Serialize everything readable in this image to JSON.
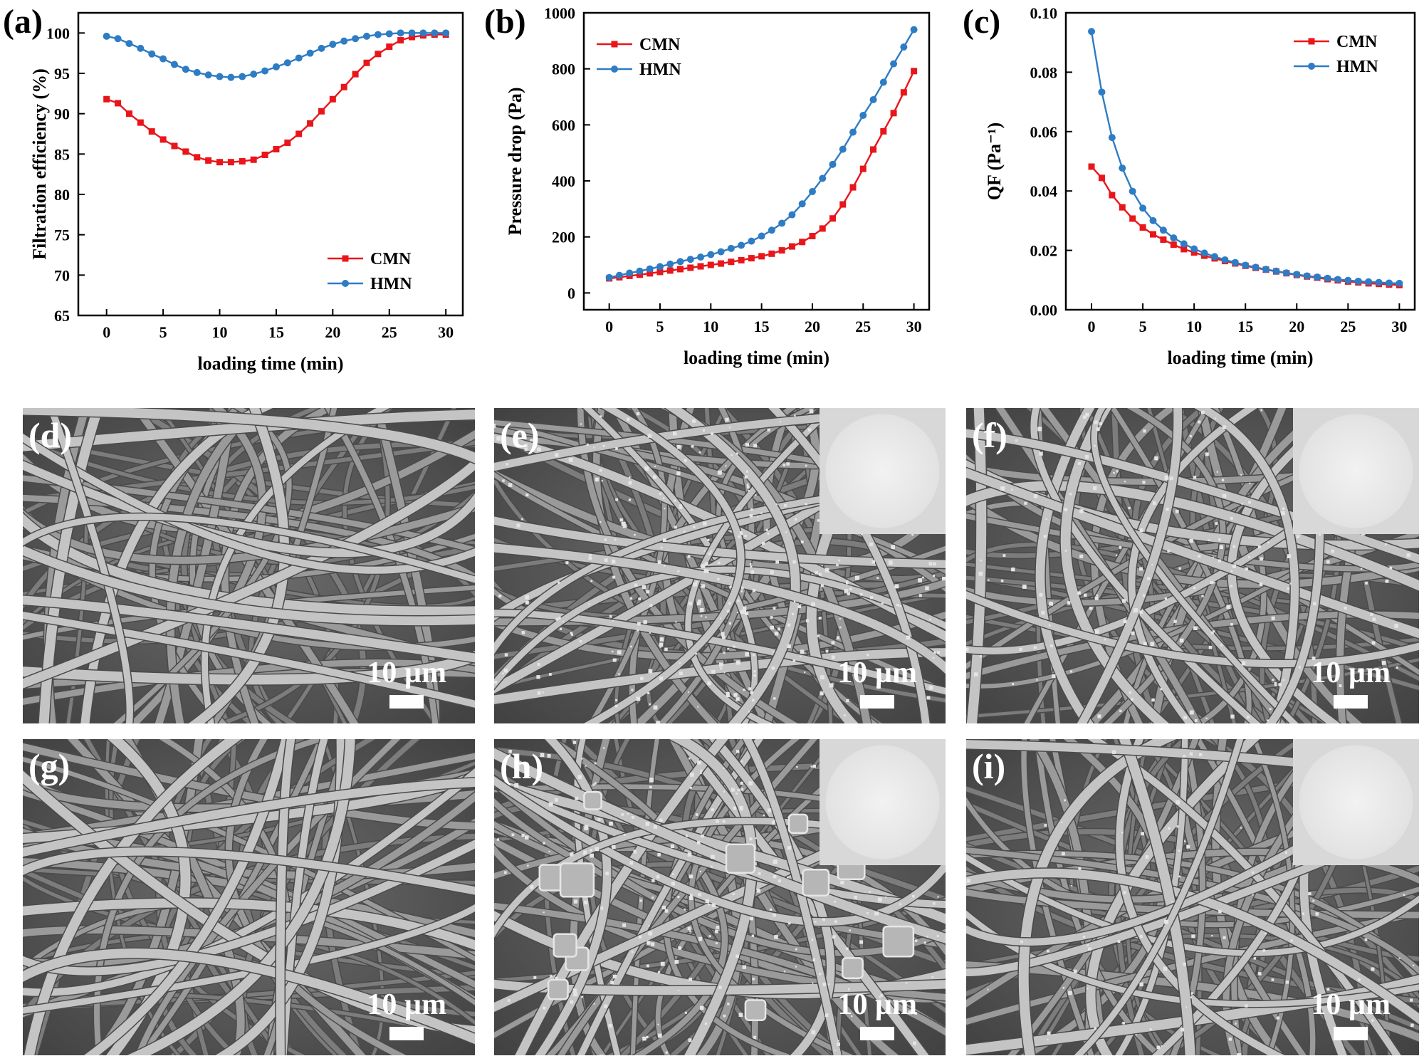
{
  "chart_data": [
    {
      "type": "line",
      "panel": "(a)",
      "xlabel": "loading time (min)",
      "ylabel": "Filtration efficiency (%)",
      "xlim": [
        -2.5,
        31.5
      ],
      "ylim": [
        65,
        102.5
      ],
      "xticks": [
        0,
        5,
        10,
        15,
        20,
        25,
        30
      ],
      "yticks": [
        65,
        70,
        75,
        80,
        85,
        90,
        95,
        100
      ],
      "legend_position": "bottom-right",
      "x": [
        0,
        1,
        2,
        3,
        4,
        5,
        6,
        7,
        8,
        9,
        10,
        11,
        12,
        13,
        14,
        15,
        16,
        17,
        18,
        19,
        20,
        21,
        22,
        23,
        24,
        25,
        26,
        27,
        28,
        29,
        30
      ],
      "series": [
        {
          "name": "CMN",
          "color": "#e8161b",
          "marker": "square",
          "values": [
            91.8,
            91.3,
            90.0,
            88.9,
            87.8,
            86.8,
            86.0,
            85.3,
            84.6,
            84.2,
            84.0,
            84.0,
            84.1,
            84.3,
            84.9,
            85.6,
            86.4,
            87.5,
            88.8,
            90.3,
            91.8,
            93.3,
            94.9,
            96.3,
            97.4,
            98.3,
            99.1,
            99.5,
            99.7,
            99.8,
            99.8
          ]
        },
        {
          "name": "HMN",
          "color": "#2e7cc4",
          "marker": "circle",
          "values": [
            99.6,
            99.3,
            98.7,
            98.1,
            97.4,
            96.8,
            96.1,
            95.5,
            95.1,
            94.8,
            94.6,
            94.5,
            94.6,
            94.9,
            95.3,
            95.8,
            96.3,
            96.9,
            97.5,
            98.1,
            98.6,
            99.0,
            99.3,
            99.6,
            99.8,
            99.9,
            100.0,
            100.0,
            100.0,
            100.0,
            100.0
          ]
        }
      ]
    },
    {
      "type": "line",
      "panel": "(b)",
      "xlabel": "loading time (min)",
      "ylabel": "Pressure drop (Pa)",
      "xlim": [
        -2.5,
        31.5
      ],
      "ylim": [
        -60,
        1000
      ],
      "xticks": [
        0,
        5,
        10,
        15,
        20,
        25,
        30
      ],
      "yticks": [
        0,
        200,
        400,
        600,
        800,
        1000
      ],
      "legend_position": "top-left",
      "x": [
        0,
        1,
        2,
        3,
        4,
        5,
        6,
        7,
        8,
        9,
        10,
        11,
        12,
        13,
        14,
        15,
        16,
        17,
        18,
        19,
        20,
        21,
        22,
        23,
        24,
        25,
        26,
        27,
        28,
        29,
        30
      ],
      "series": [
        {
          "name": "CMN",
          "color": "#e8161b",
          "marker": "square",
          "values": [
            52,
            56,
            61,
            65,
            70,
            75,
            80,
            85,
            90,
            95,
            100,
            105,
            111,
            117,
            124,
            131,
            140,
            152,
            166,
            182,
            203,
            230,
            266,
            316,
            377,
            443,
            512,
            577,
            642,
            716,
            792
          ]
        },
        {
          "name": "HMN",
          "color": "#2e7cc4",
          "marker": "circle",
          "values": [
            55,
            63,
            71,
            78,
            86,
            94,
            103,
            112,
            120,
            128,
            137,
            147,
            159,
            170,
            185,
            203,
            224,
            249,
            279,
            318,
            362,
            409,
            459,
            513,
            574,
            634,
            690,
            752,
            818,
            878,
            940
          ]
        }
      ]
    },
    {
      "type": "line",
      "panel": "(c)",
      "xlabel": "loading time (min)",
      "ylabel": "QF (Pa⁻¹)",
      "xlim": [
        -2.5,
        31.5
      ],
      "ylim": [
        0,
        0.1
      ],
      "xticks": [
        0,
        5,
        10,
        15,
        20,
        25,
        30
      ],
      "yticks": [
        "0.00",
        "0.02",
        "0.04",
        "0.06",
        "0.08",
        "0.10"
      ],
      "legend_position": "top-right",
      "x": [
        0,
        1,
        2,
        3,
        4,
        5,
        6,
        7,
        8,
        9,
        10,
        11,
        12,
        13,
        14,
        15,
        16,
        17,
        18,
        19,
        20,
        21,
        22,
        23,
        24,
        25,
        26,
        27,
        28,
        29,
        30
      ],
      "series": [
        {
          "name": "CMN",
          "color": "#e8161b",
          "marker": "square",
          "values": [
            0.0482,
            0.0444,
            0.0386,
            0.0345,
            0.0307,
            0.0277,
            0.0254,
            0.0236,
            0.0219,
            0.0204,
            0.0193,
            0.0182,
            0.0173,
            0.0164,
            0.0156,
            0.0148,
            0.0141,
            0.0135,
            0.0129,
            0.0123,
            0.0117,
            0.0112,
            0.0108,
            0.0103,
            0.0099,
            0.0095,
            0.0092,
            0.0089,
            0.0087,
            0.0085,
            0.0083
          ]
        },
        {
          "name": "HMN",
          "color": "#2e7cc4",
          "marker": "circle",
          "values": [
            0.0937,
            0.0733,
            0.058,
            0.0477,
            0.0399,
            0.0342,
            0.03,
            0.0268,
            0.0242,
            0.0222,
            0.0205,
            0.0191,
            0.0179,
            0.0168,
            0.0159,
            0.015,
            0.0143,
            0.0136,
            0.013,
            0.0124,
            0.0119,
            0.0114,
            0.011,
            0.0106,
            0.0102,
            0.0099,
            0.0096,
            0.0094,
            0.0092,
            0.009,
            0.0089
          ]
        }
      ]
    }
  ],
  "sem_panels": [
    {
      "letter": "(d)",
      "scale_bar": "10 µm",
      "inset": false,
      "particles": "none"
    },
    {
      "letter": "(e)",
      "scale_bar": "10 µm",
      "inset": true,
      "particles": "dense"
    },
    {
      "letter": "(f)",
      "scale_bar": "10 µm",
      "inset": true,
      "particles": "light"
    },
    {
      "letter": "(g)",
      "scale_bar": "10 µm",
      "inset": false,
      "particles": "none"
    },
    {
      "letter": "(h)",
      "scale_bar": "10 µm",
      "inset": true,
      "particles": "cubes"
    },
    {
      "letter": "(i)",
      "scale_bar": "10 µm",
      "inset": true,
      "particles": "sparse"
    }
  ],
  "colors": {
    "cmn": "#e8161b",
    "hmn": "#2e7cc4",
    "sem_background": "#5a5a5a",
    "sem_fiber": "#b8b8b8"
  }
}
